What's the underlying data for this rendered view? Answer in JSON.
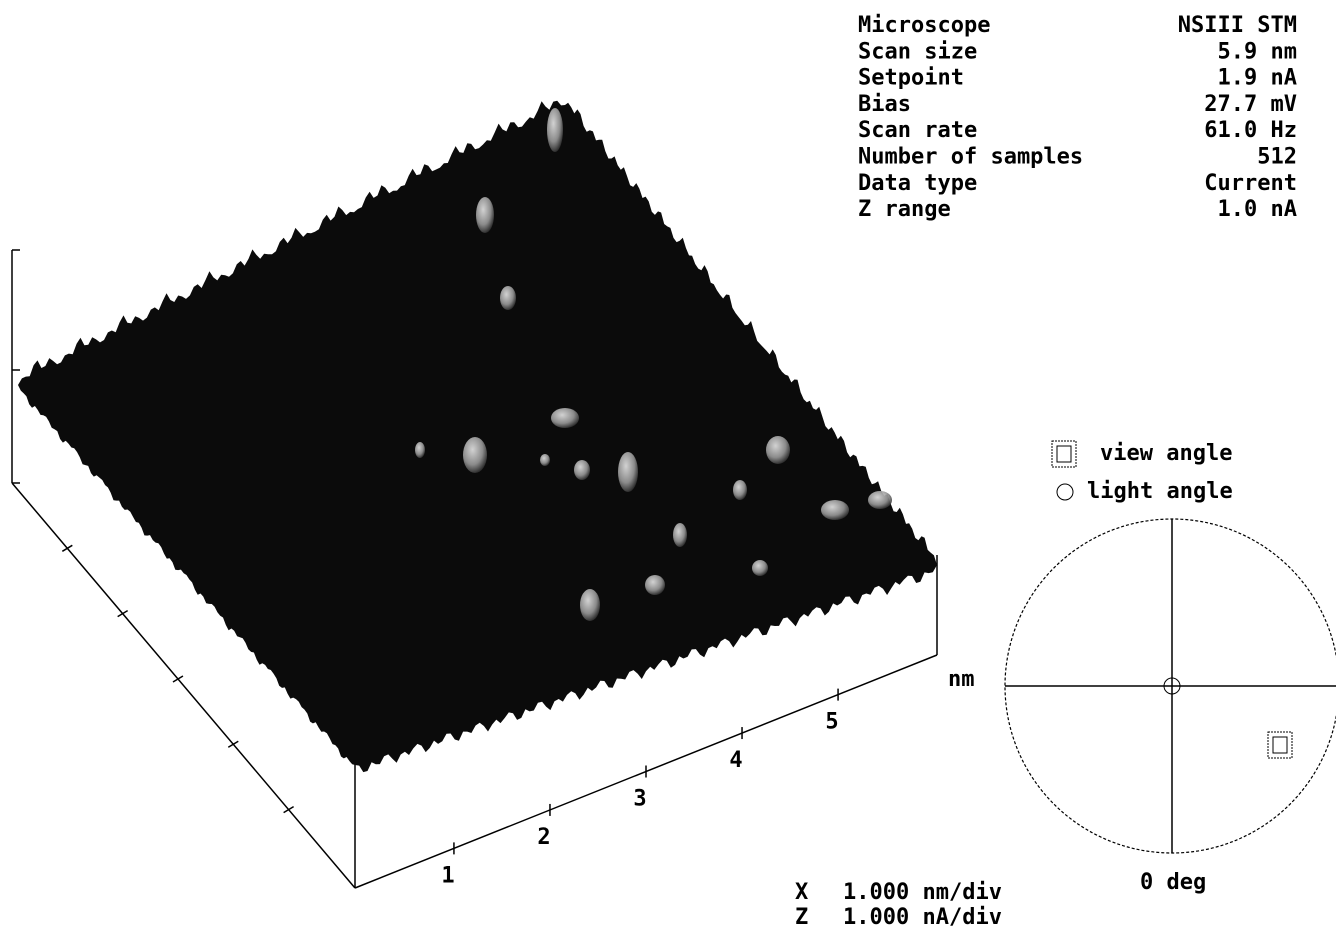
{
  "parameters": {
    "rows": [
      [
        "Microscope",
        "NSIII STM"
      ],
      [
        "Scan size",
        "5.9 nm"
      ],
      [
        "Setpoint",
        "1.9 nA"
      ],
      [
        "Bias",
        "27.7 mV"
      ],
      [
        "Scan rate",
        "61.0 Hz"
      ],
      [
        "Number of samples",
        "512"
      ],
      [
        "Data type",
        "Current"
      ],
      [
        "Z range",
        "1.0 nA"
      ]
    ]
  },
  "axis": {
    "ticks": [
      "1",
      "2",
      "3",
      "4",
      "5"
    ],
    "unit": "nm"
  },
  "scale": {
    "x_label": "X",
    "x_value": "1.000 nm/div",
    "z_label": "Z",
    "z_value": "1.000 nA/div"
  },
  "legend": {
    "view": "view angle",
    "light": "light angle",
    "angle": "0 deg"
  }
}
